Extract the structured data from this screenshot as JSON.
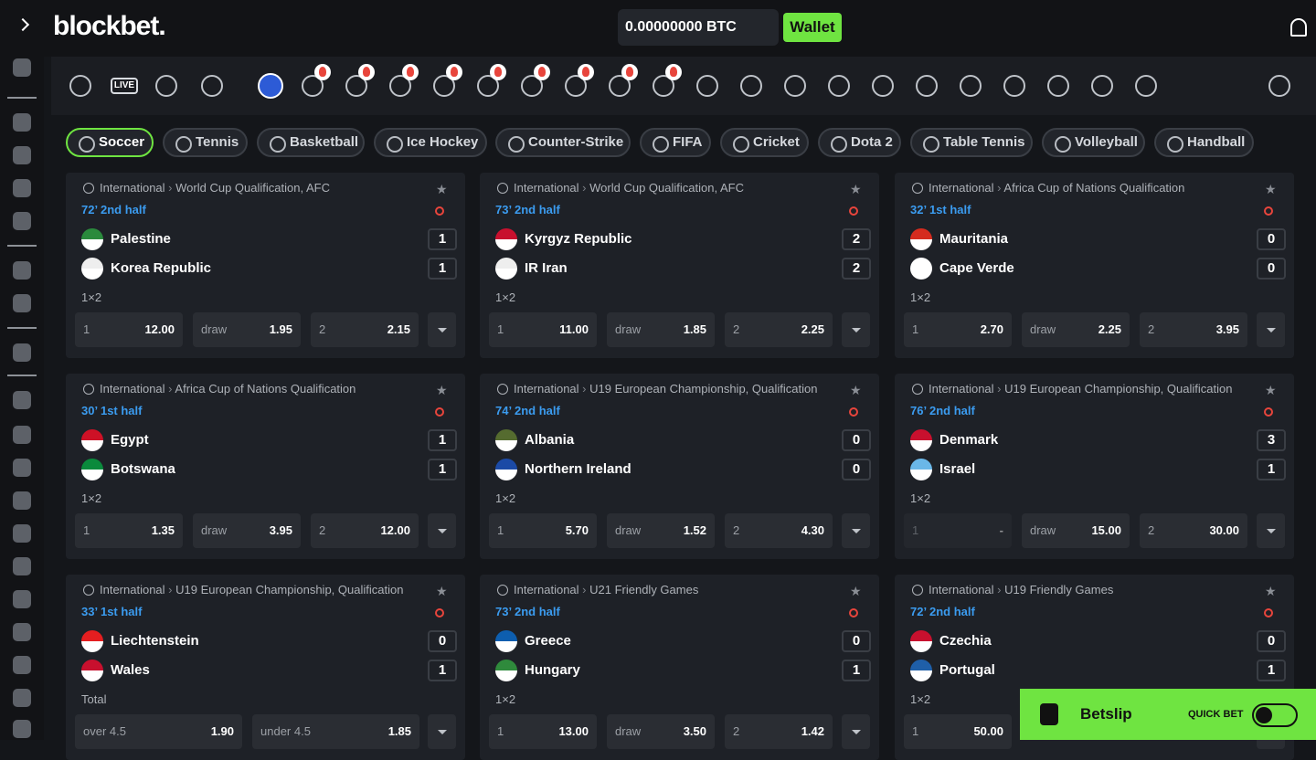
{
  "header": {
    "logo": "blockbet.",
    "balance": "0.00000000 BTC",
    "wallet": "Wallet"
  },
  "nav": {
    "live": "LIVE"
  },
  "tabs": [
    "Soccer",
    "Tennis",
    "Basketball",
    "Ice Hockey",
    "Counter-Strike",
    "FIFA",
    "Cricket",
    "Dota 2",
    "Table Tennis",
    "Volleyball",
    "Handball"
  ],
  "matches": [
    {
      "country": "International",
      "league": "World Cup Qualification, AFC",
      "time": "72’ 2nd half",
      "teams": [
        {
          "name": "Palestine",
          "score": "1"
        },
        {
          "name": "Korea Republic",
          "score": "1"
        }
      ],
      "market": "1×2",
      "odds": [
        {
          "label": "1",
          "value": "12.00"
        },
        {
          "label": "draw",
          "value": "1.95"
        },
        {
          "label": "2",
          "value": "2.15"
        }
      ]
    },
    {
      "country": "International",
      "league": "World Cup Qualification, AFC",
      "time": "73’ 2nd half",
      "teams": [
        {
          "name": "Kyrgyz Republic",
          "score": "2"
        },
        {
          "name": "IR Iran",
          "score": "2"
        }
      ],
      "market": "1×2",
      "odds": [
        {
          "label": "1",
          "value": "11.00"
        },
        {
          "label": "draw",
          "value": "1.85"
        },
        {
          "label": "2",
          "value": "2.25"
        }
      ]
    },
    {
      "country": "International",
      "league": "Africa Cup of Nations Qualification",
      "time": "32’ 1st half",
      "teams": [
        {
          "name": "Mauritania",
          "score": "0"
        },
        {
          "name": "Cape Verde",
          "score": "0"
        }
      ],
      "market": "1×2",
      "odds": [
        {
          "label": "1",
          "value": "2.70"
        },
        {
          "label": "draw",
          "value": "2.25"
        },
        {
          "label": "2",
          "value": "3.95"
        }
      ]
    },
    {
      "country": "International",
      "league": "Africa Cup of Nations Qualification",
      "time": "30’ 1st half",
      "teams": [
        {
          "name": "Egypt",
          "score": "1"
        },
        {
          "name": "Botswana",
          "score": "1"
        }
      ],
      "market": "1×2",
      "odds": [
        {
          "label": "1",
          "value": "1.35"
        },
        {
          "label": "draw",
          "value": "3.95"
        },
        {
          "label": "2",
          "value": "12.00"
        }
      ]
    },
    {
      "country": "International",
      "league": "U19 European Championship, Qualification",
      "time": "74’ 2nd half",
      "teams": [
        {
          "name": "Albania",
          "score": "0"
        },
        {
          "name": "Northern Ireland",
          "score": "0"
        }
      ],
      "market": "1×2",
      "odds": [
        {
          "label": "1",
          "value": "5.70"
        },
        {
          "label": "draw",
          "value": "1.52"
        },
        {
          "label": "2",
          "value": "4.30"
        }
      ]
    },
    {
      "country": "International",
      "league": "U19 European Championship, Qualification",
      "time": "76’ 2nd half",
      "teams": [
        {
          "name": "Denmark",
          "score": "3"
        },
        {
          "name": "Israel",
          "score": "1"
        }
      ],
      "market": "1×2",
      "odds": [
        {
          "label": "1",
          "value": "-"
        },
        {
          "label": "draw",
          "value": "15.00"
        },
        {
          "label": "2",
          "value": "30.00"
        }
      ]
    },
    {
      "country": "International",
      "league": "U19 European Championship, Qualification",
      "time": "33’ 1st half",
      "teams": [
        {
          "name": "Liechtenstein",
          "score": "0"
        },
        {
          "name": "Wales",
          "score": "1"
        }
      ],
      "market": "Total",
      "odds": [
        {
          "label": "over 4.5",
          "value": "1.90"
        },
        {
          "label": "under 4.5",
          "value": "1.85"
        }
      ]
    },
    {
      "country": "International",
      "league": "U21 Friendly Games",
      "time": "73’ 2nd half",
      "teams": [
        {
          "name": "Greece",
          "score": "0"
        },
        {
          "name": "Hungary",
          "score": "1"
        }
      ],
      "market": "1×2",
      "odds": [
        {
          "label": "1",
          "value": "13.00"
        },
        {
          "label": "draw",
          "value": "3.50"
        },
        {
          "label": "2",
          "value": "1.42"
        }
      ]
    },
    {
      "country": "International",
      "league": "U19 Friendly Games",
      "time": "72’ 2nd half",
      "teams": [
        {
          "name": "Czechia",
          "score": "0"
        },
        {
          "name": "Portugal",
          "score": "1"
        }
      ],
      "market": "1×2",
      "odds": [
        {
          "label": "1",
          "value": "50.00"
        }
      ]
    }
  ],
  "betslip": {
    "title": "Betslip",
    "quick_bet": "QUICK BET"
  }
}
